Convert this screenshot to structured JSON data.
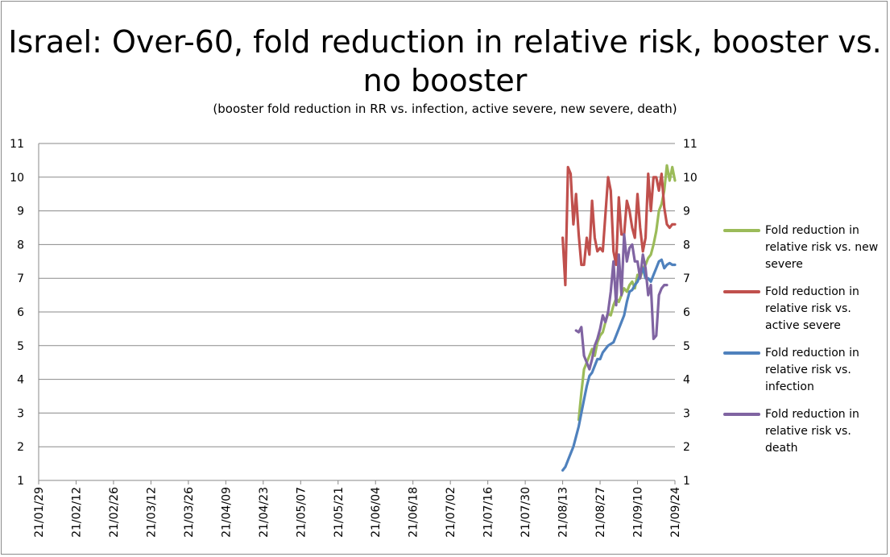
{
  "chart_data": {
    "type": "line",
    "title": "Israel: Over-60, fold reduction in relative risk, booster vs. no booster",
    "subtitle": "(booster fold reduction in RR vs. infection, active severe, new severe, death)",
    "ylim": [
      1,
      11
    ],
    "yticks": [
      1,
      2,
      3,
      4,
      5,
      6,
      7,
      8,
      9,
      10,
      11
    ],
    "xlim": [
      "2021-01-29",
      "2021-09-24"
    ],
    "xticks": [
      "21/01/29",
      "21/02/12",
      "21/02/26",
      "21/03/12",
      "21/03/26",
      "21/04/09",
      "21/04/23",
      "21/05/07",
      "21/05/21",
      "21/06/04",
      "21/06/18",
      "21/07/02",
      "21/07/16",
      "21/07/30",
      "21/08/13",
      "21/08/27",
      "21/09/10",
      "21/09/24"
    ],
    "grid": "horizontal",
    "legend_position": "right",
    "series": [
      {
        "name": "Fold reduction in relative risk vs. new severe",
        "color": "#9bbb59",
        "x": [
          "2021-08-19",
          "2021-08-20",
          "2021-08-21",
          "2021-08-22",
          "2021-08-23",
          "2021-08-24",
          "2021-08-25",
          "2021-08-26",
          "2021-08-27",
          "2021-08-28",
          "2021-08-29",
          "2021-08-30",
          "2021-08-31",
          "2021-09-01",
          "2021-09-02",
          "2021-09-03",
          "2021-09-04",
          "2021-09-05",
          "2021-09-06",
          "2021-09-07",
          "2021-09-08",
          "2021-09-09",
          "2021-09-10",
          "2021-09-11",
          "2021-09-12",
          "2021-09-13",
          "2021-09-14",
          "2021-09-15",
          "2021-09-16",
          "2021-09-17",
          "2021-09-18",
          "2021-09-19",
          "2021-09-20",
          "2021-09-21",
          "2021-09-22",
          "2021-09-23",
          "2021-09-24"
        ],
        "y": [
          2.8,
          3.6,
          4.3,
          4.5,
          4.7,
          4.9,
          4.7,
          5.1,
          5.3,
          5.4,
          5.7,
          5.95,
          5.9,
          6.2,
          6.4,
          6.3,
          6.5,
          6.7,
          6.6,
          6.8,
          6.9,
          6.7,
          7.1,
          7.0,
          7.3,
          7.4,
          7.6,
          7.7,
          8.0,
          8.4,
          9.0,
          9.2,
          9.6,
          10.35,
          9.9,
          10.3,
          9.9
        ]
      },
      {
        "name": "Fold reduction in relative risk vs. active severe",
        "color": "#c0504d",
        "x": [
          "2021-08-13",
          "2021-08-14",
          "2021-08-15",
          "2021-08-16",
          "2021-08-17",
          "2021-08-18",
          "2021-08-19",
          "2021-08-20",
          "2021-08-21",
          "2021-08-22",
          "2021-08-23",
          "2021-08-24",
          "2021-08-25",
          "2021-08-26",
          "2021-08-27",
          "2021-08-28",
          "2021-08-29",
          "2021-08-30",
          "2021-08-31",
          "2021-09-01",
          "2021-09-02",
          "2021-09-03",
          "2021-09-04",
          "2021-09-05",
          "2021-09-06",
          "2021-09-07",
          "2021-09-08",
          "2021-09-09",
          "2021-09-10",
          "2021-09-11",
          "2021-09-12",
          "2021-09-13",
          "2021-09-14",
          "2021-09-15",
          "2021-09-16",
          "2021-09-17",
          "2021-09-18",
          "2021-09-19",
          "2021-09-20",
          "2021-09-21",
          "2021-09-22",
          "2021-09-23",
          "2021-09-24"
        ],
        "y": [
          8.2,
          6.8,
          10.3,
          10.1,
          8.6,
          9.5,
          8.3,
          7.4,
          7.4,
          8.2,
          7.7,
          9.3,
          8.2,
          7.8,
          7.9,
          7.8,
          8.9,
          10.0,
          9.6,
          7.8,
          7.4,
          9.4,
          8.3,
          8.3,
          9.3,
          9.0,
          8.5,
          8.2,
          9.5,
          8.5,
          7.8,
          8.2,
          10.1,
          9.0,
          10.0,
          10.0,
          9.6,
          10.1,
          9.1,
          8.6,
          8.5,
          8.6,
          8.6
        ]
      },
      {
        "name": "Fold reduction in relative risk vs. infection",
        "color": "#4f81bd",
        "x": [
          "2021-08-13",
          "2021-08-14",
          "2021-08-15",
          "2021-08-16",
          "2021-08-17",
          "2021-08-18",
          "2021-08-19",
          "2021-08-20",
          "2021-08-21",
          "2021-08-22",
          "2021-08-23",
          "2021-08-24",
          "2021-08-25",
          "2021-08-26",
          "2021-08-27",
          "2021-08-28",
          "2021-08-29",
          "2021-08-30",
          "2021-08-31",
          "2021-09-01",
          "2021-09-02",
          "2021-09-03",
          "2021-09-04",
          "2021-09-05",
          "2021-09-06",
          "2021-09-07",
          "2021-09-08",
          "2021-09-09",
          "2021-09-10",
          "2021-09-11",
          "2021-09-12",
          "2021-09-13",
          "2021-09-14",
          "2021-09-15",
          "2021-09-16",
          "2021-09-17",
          "2021-09-18",
          "2021-09-19",
          "2021-09-20",
          "2021-09-21",
          "2021-09-22",
          "2021-09-23",
          "2021-09-24"
        ],
        "y": [
          1.3,
          1.4,
          1.6,
          1.8,
          2.0,
          2.3,
          2.6,
          3.0,
          3.4,
          3.8,
          4.1,
          4.2,
          4.4,
          4.6,
          4.6,
          4.8,
          4.9,
          5.0,
          5.05,
          5.1,
          5.3,
          5.5,
          5.7,
          5.9,
          6.3,
          6.6,
          6.65,
          6.8,
          6.9,
          7.1,
          7.3,
          7.0,
          7.0,
          6.9,
          7.1,
          7.3,
          7.5,
          7.55,
          7.3,
          7.4,
          7.45,
          7.4,
          7.4
        ]
      },
      {
        "name": "Fold reduction in relative risk vs. death",
        "color": "#8064a2",
        "x": [
          "2021-08-18",
          "2021-08-19",
          "2021-08-20",
          "2021-08-21",
          "2021-08-22",
          "2021-08-23",
          "2021-08-24",
          "2021-08-25",
          "2021-08-26",
          "2021-08-27",
          "2021-08-28",
          "2021-08-29",
          "2021-08-30",
          "2021-08-31",
          "2021-09-01",
          "2021-09-02",
          "2021-09-03",
          "2021-09-04",
          "2021-09-05",
          "2021-09-06",
          "2021-09-07",
          "2021-09-08",
          "2021-09-09",
          "2021-09-10",
          "2021-09-11",
          "2021-09-12",
          "2021-09-13",
          "2021-09-14",
          "2021-09-15",
          "2021-09-16",
          "2021-09-17",
          "2021-09-18",
          "2021-09-19",
          "2021-09-20",
          "2021-09-21"
        ],
        "y": [
          5.45,
          5.4,
          5.55,
          4.7,
          4.5,
          4.3,
          4.6,
          5.0,
          5.2,
          5.5,
          5.9,
          5.7,
          6.0,
          6.6,
          7.5,
          6.2,
          7.7,
          6.5,
          8.3,
          7.5,
          7.9,
          8.0,
          7.5,
          7.5,
          7.0,
          7.7,
          7.3,
          6.5,
          6.8,
          5.2,
          5.3,
          6.5,
          6.7,
          6.8,
          6.8
        ]
      }
    ]
  }
}
